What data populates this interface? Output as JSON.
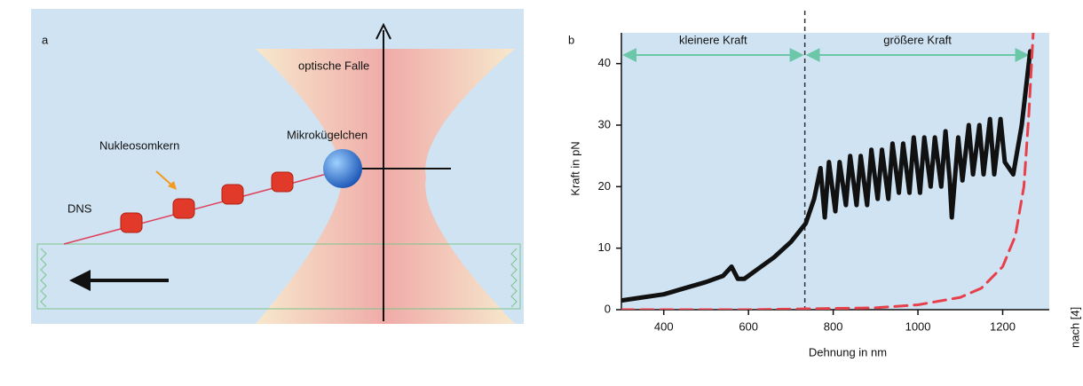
{
  "panel_a": {
    "letter": "a",
    "trap_label": "optische Falle",
    "bead_label": "Mikrokügelchen",
    "nucleosome_label": "Nukleosomkern",
    "dna_label": "DNS"
  },
  "credit": "nach [4]",
  "chart_data": {
    "type": "line",
    "letter": "b",
    "x_label": "Dehnung in nm",
    "y_label": "Kraft in pN",
    "xlim": [
      300,
      1310
    ],
    "ylim": [
      0,
      45
    ],
    "xticks": [
      400,
      600,
      800,
      1000,
      1200
    ],
    "yticks": [
      0,
      10,
      20,
      30,
      40
    ],
    "grid": false,
    "divider": 733,
    "regions": [
      {
        "label": "kleinere Kraft",
        "from": 300,
        "to": 733
      },
      {
        "label": "größere Kraft",
        "from": 733,
        "to": 1265
      }
    ],
    "series": [
      {
        "color": "#111111",
        "style": "solid",
        "x": [
          300,
          350,
          400,
          450,
          500,
          540,
          560,
          575,
          590,
          620,
          660,
          700,
          735,
          755,
          770,
          780,
          790,
          805,
          815,
          830,
          840,
          855,
          865,
          880,
          890,
          905,
          915,
          930,
          940,
          955,
          965,
          980,
          990,
          1005,
          1015,
          1030,
          1040,
          1055,
          1065,
          1075,
          1080,
          1095,
          1105,
          1120,
          1130,
          1145,
          1155,
          1170,
          1180,
          1195,
          1205,
          1225,
          1245,
          1265
        ],
        "values": [
          1.5,
          2,
          2.5,
          3.5,
          4.5,
          5.5,
          7,
          5,
          5,
          6.5,
          8.5,
          11,
          14,
          18,
          23,
          15,
          24,
          16,
          24,
          17,
          25,
          17,
          25,
          17,
          26,
          18,
          26,
          18,
          27,
          19,
          27,
          19,
          28,
          19,
          28,
          20,
          28,
          20,
          29,
          21,
          15,
          28,
          21,
          30,
          22,
          30,
          22,
          31,
          22,
          31,
          24,
          22,
          30,
          42
        ]
      },
      {
        "color": "#e8404a",
        "style": "dashed",
        "x": [
          300,
          600,
          900,
          1000,
          1100,
          1150,
          1200,
          1230,
          1250,
          1262,
          1272
        ],
        "values": [
          0,
          0,
          0.3,
          0.8,
          2,
          3.5,
          7,
          12,
          20,
          32,
          45
        ]
      }
    ]
  }
}
